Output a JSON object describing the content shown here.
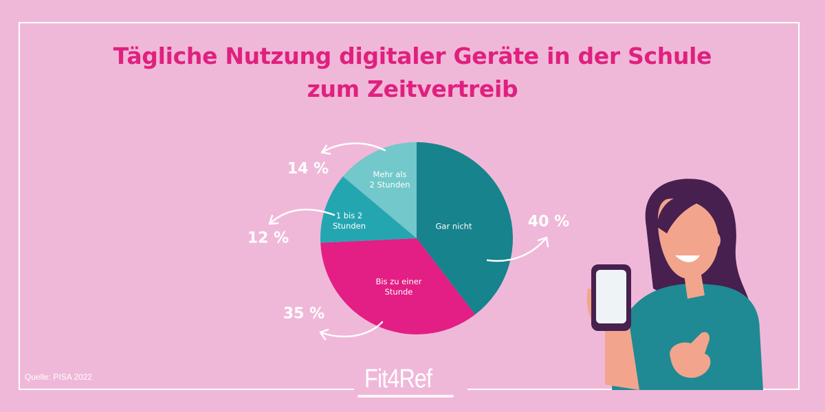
{
  "title_line1": "Tägliche Nutzung digitaler Geräte in der Schule",
  "title_line2": "zum Zeitvertreib",
  "source": "Quelle: PISA 2022",
  "logo": "Fit4Ref",
  "chart_data": {
    "type": "pie",
    "title": "Tägliche Nutzung digitaler Geräte in der Schule zum Zeitvertreib",
    "start": "top",
    "direction": "clockwise",
    "slices": [
      {
        "label": "Gar nicht",
        "value": 40,
        "value_label": "40 %",
        "color": "#17838c"
      },
      {
        "label": "Bis zu einer Stunde",
        "value": 35,
        "value_label": "35 %",
        "color": "#e31e84"
      },
      {
        "label": "1 bis 2 Stunden",
        "value": 12,
        "value_label": "12 %",
        "color": "#24a6b1"
      },
      {
        "label": "Mehr als 2 Stunden",
        "value": 14,
        "value_label": "14 %",
        "color": "#72c8ca"
      }
    ]
  },
  "slice_label_lines": [
    [
      "Gar nicht"
    ],
    [
      "Bis zu einer",
      "Stunde"
    ],
    [
      "1 bis 2",
      "Stunden"
    ],
    [
      "Mehr als",
      "2 Stunden"
    ]
  ]
}
